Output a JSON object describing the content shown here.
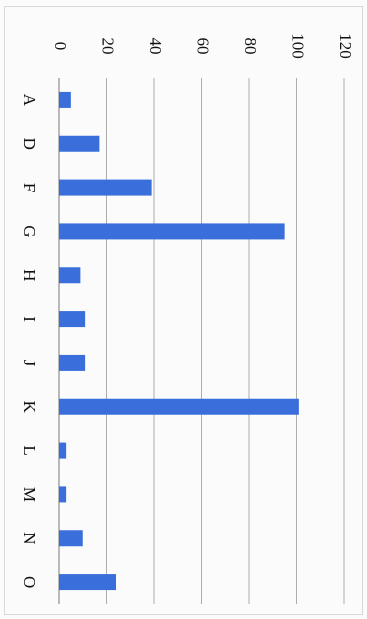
{
  "chart_data": {
    "type": "bar",
    "orientation": "horizontal",
    "categories": [
      "A",
      "D",
      "F",
      "G",
      "H",
      "I",
      "J",
      "K",
      "L",
      "M",
      "N",
      "O"
    ],
    "values": [
      5,
      17,
      39,
      95,
      9,
      11,
      11,
      101,
      3,
      3,
      10,
      24
    ],
    "xlim": [
      0,
      120
    ],
    "ticks": [
      "0",
      "20",
      "40",
      "60",
      "80",
      "100",
      "120"
    ],
    "title": "",
    "xlabel": "",
    "ylabel": "",
    "grid": true,
    "bar_color": "#3a6fdb"
  }
}
